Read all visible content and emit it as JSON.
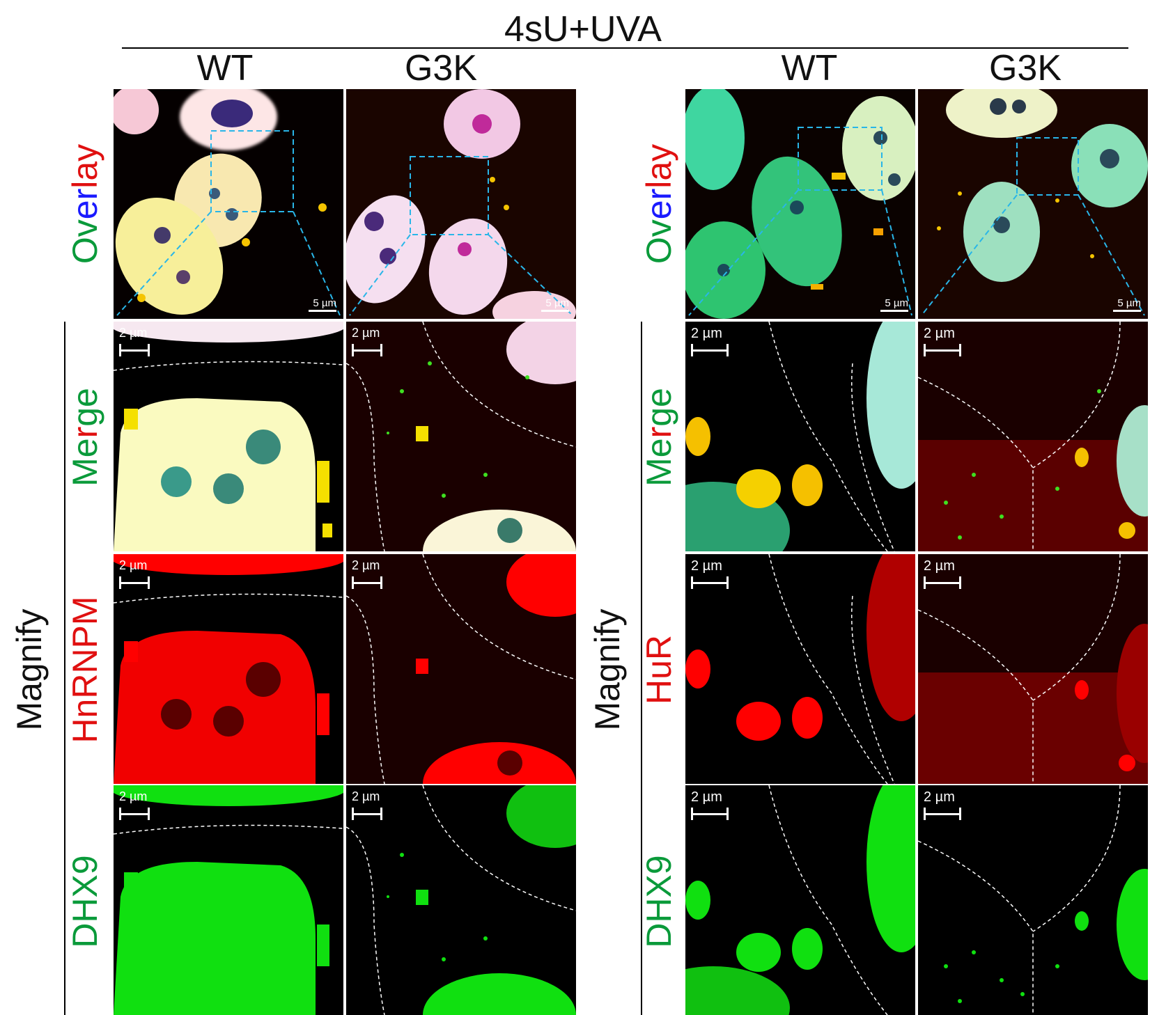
{
  "title": "4sU+UVA",
  "groups": [
    {
      "wt": "WT",
      "g3k": "G3K",
      "magnify": "Magnify",
      "overlay": [
        "Ov",
        "er",
        "lay"
      ],
      "merge": [
        "Me",
        "r",
        "ge"
      ],
      "ch2": "HnRNPM",
      "ch3": "DHX9"
    },
    {
      "wt": "WT",
      "g3k": "G3K",
      "magnify": "Magnify",
      "overlay": [
        "Ov",
        "er",
        "lay"
      ],
      "merge": [
        "Me",
        "r",
        "ge"
      ],
      "ch2": "HuR",
      "ch3": "DHX9"
    }
  ],
  "scalebars": {
    "overview": "5 µm",
    "zoom": "2 µm"
  },
  "colors": {
    "green": "#0a9a3a",
    "blue": "#1a1aff",
    "red": "#e01010",
    "black": "#111111",
    "dash": "#29b6e8"
  }
}
